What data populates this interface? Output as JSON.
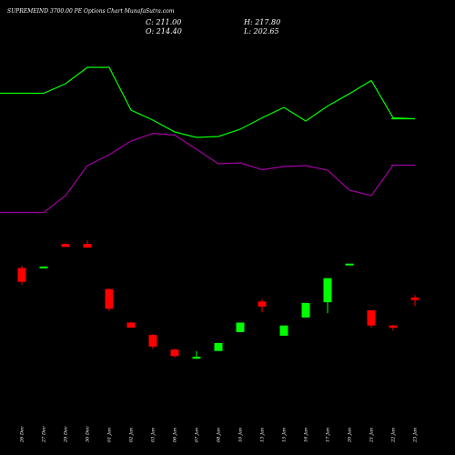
{
  "header": {
    "title": "SUPREMEIND 3700.00 PE Options Chart MunafaSutra.com",
    "close_label": "C: 211.00",
    "high_label": "H: 217.80",
    "open_label": "O: 214.40",
    "low_label": "L: 202.65"
  },
  "colors": {
    "background": "#000000",
    "up": "#00ff00",
    "down": "#ff0000",
    "line_green": "#00ff00",
    "line_purple": "#a000a0",
    "text": "#ffffff"
  },
  "chart_data": {
    "type": "candlestick",
    "categories": [
      "26 Dec",
      "27 Dec",
      "29 Dec",
      "30 Dec",
      "01 Jan",
      "02 Jan",
      "03 Jan",
      "06 Jan",
      "07 Jan",
      "08 Jan",
      "10 Jan",
      "13 Jan",
      "15 Jan",
      "16 Jan",
      "17 Jan",
      "20 Jan",
      "21 Jan",
      "22 Jan",
      "23 Jan"
    ],
    "candles": [
      {
        "o": 255,
        "h": 258,
        "l": 232,
        "c": 236
      },
      {
        "o": 257,
        "h": 257,
        "l": 256,
        "c": 257
      },
      {
        "o": 288,
        "h": 289,
        "l": 284,
        "c": 284
      },
      {
        "o": 288,
        "h": 293,
        "l": 283,
        "c": 283
      },
      {
        "o": 226,
        "h": 227,
        "l": 196,
        "c": 199
      },
      {
        "o": 180,
        "h": 181,
        "l": 173,
        "c": 173
      },
      {
        "o": 163,
        "h": 164,
        "l": 144,
        "c": 147
      },
      {
        "o": 143,
        "h": 144,
        "l": 132,
        "c": 134
      },
      {
        "o": 131,
        "h": 141,
        "l": 130,
        "c": 133
      },
      {
        "o": 141,
        "h": 152,
        "l": 141,
        "c": 152
      },
      {
        "o": 167,
        "h": 180,
        "l": 167,
        "c": 180
      },
      {
        "o": 209,
        "h": 212,
        "l": 194,
        "c": 202
      },
      {
        "o": 162,
        "h": 176,
        "l": 162,
        "c": 176
      },
      {
        "o": 187,
        "h": 207,
        "l": 187,
        "c": 207
      },
      {
        "o": 208,
        "h": 241,
        "l": 193,
        "c": 241
      },
      {
        "o": 261,
        "h": 261,
        "l": 261,
        "c": 261
      },
      {
        "o": 197,
        "h": 197,
        "l": 173,
        "c": 176
      },
      {
        "o": 176,
        "h": 177,
        "l": 169,
        "c": 173
      },
      {
        "o": 214.4,
        "h": 217.8,
        "l": 202.65,
        "c": 211.0
      }
    ],
    "series": [
      {
        "color": "green",
        "values": [
          0.795,
          0.795,
          0.816,
          0.852,
          0.852,
          0.758,
          0.736,
          0.71,
          0.698,
          0.7,
          0.716,
          0.741,
          0.764,
          0.734,
          0.767,
          0.794,
          0.823,
          0.741,
          0.739
        ]
      },
      {
        "color": "purple",
        "values": [
          0.533,
          0.533,
          0.57,
          0.636,
          0.66,
          0.69,
          0.707,
          0.703,
          0.672,
          0.64,
          0.642,
          0.627,
          0.634,
          0.636,
          0.626,
          0.582,
          0.57,
          0.637,
          0.637
        ]
      }
    ]
  }
}
